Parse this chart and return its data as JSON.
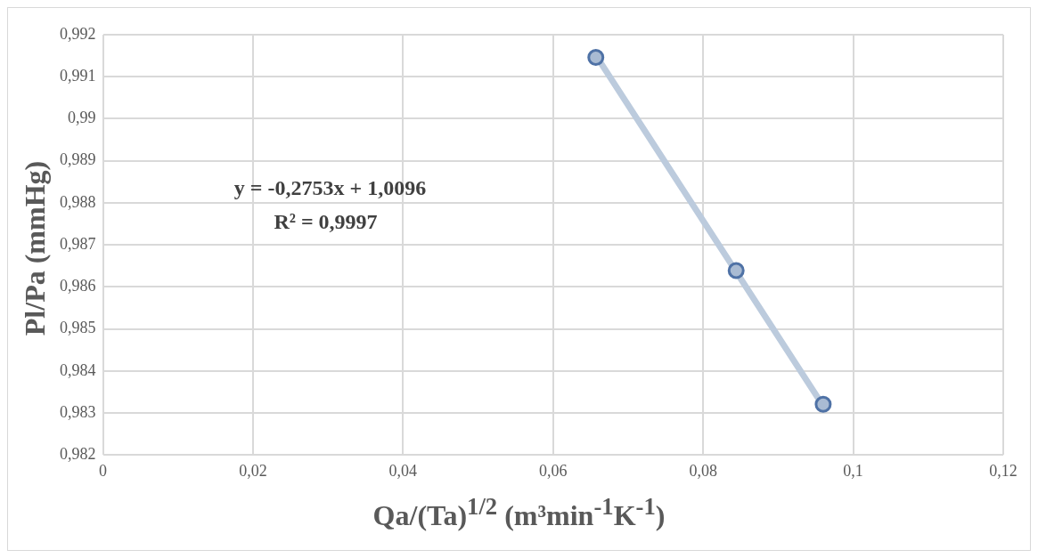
{
  "chart_data": {
    "type": "scatter",
    "xlabel": "Qa/(Ta)$^{1/2}$ (m³min$^{-1}$K$^{-1}$)",
    "ylabel": "Pl/Pa (mmHg)",
    "annotations": [
      "y = -0,2753x + 1,0096",
      "R² = 0,9997"
    ],
    "series": [
      {
        "color": "#4f72a6",
        "marker": "circle",
        "x": [
          0.0657,
          0.0844,
          0.096
        ],
        "values": [
          0.99146,
          0.98639,
          0.98321
        ]
      },
      {
        "type": "line",
        "marker": "none",
        "color": "#bccbdd",
        "x": [
          0.0657,
          0.096
        ],
        "values": [
          0.99151,
          0.98317
        ]
      }
    ],
    "xlim": [
      0,
      0.12
    ],
    "xticks": [
      0,
      {
        "value": 0.02,
        "label": "0,02"
      },
      {
        "value": 0.04,
        "label": "0,04"
      },
      {
        "value": 0.06,
        "label": "0,06"
      },
      {
        "value": 0.08,
        "label": "0,08"
      },
      {
        "value": 0.1,
        "label": "0,1"
      },
      {
        "value": 0.12,
        "label": "0,12"
      }
    ],
    "ylim": [
      0.982,
      0.992
    ],
    "yticks": [
      {
        "value": 0.982,
        "label": "0,982"
      },
      {
        "value": 0.983,
        "label": "0,983"
      },
      {
        "value": 0.984,
        "label": "0,984"
      },
      {
        "value": 0.985,
        "label": "0,985"
      },
      {
        "value": 0.986,
        "label": "0,986"
      },
      {
        "value": 0.987,
        "label": "0,987"
      },
      {
        "value": 0.988,
        "label": "0,988"
      },
      {
        "value": 0.989,
        "label": "0,989"
      },
      {
        "value": 0.99,
        "label": "0,99"
      },
      {
        "value": 0.991,
        "label": "0,991"
      },
      {
        "value": 0.992,
        "label": "0,992"
      }
    ],
    "grid": true,
    "legend": false
  }
}
